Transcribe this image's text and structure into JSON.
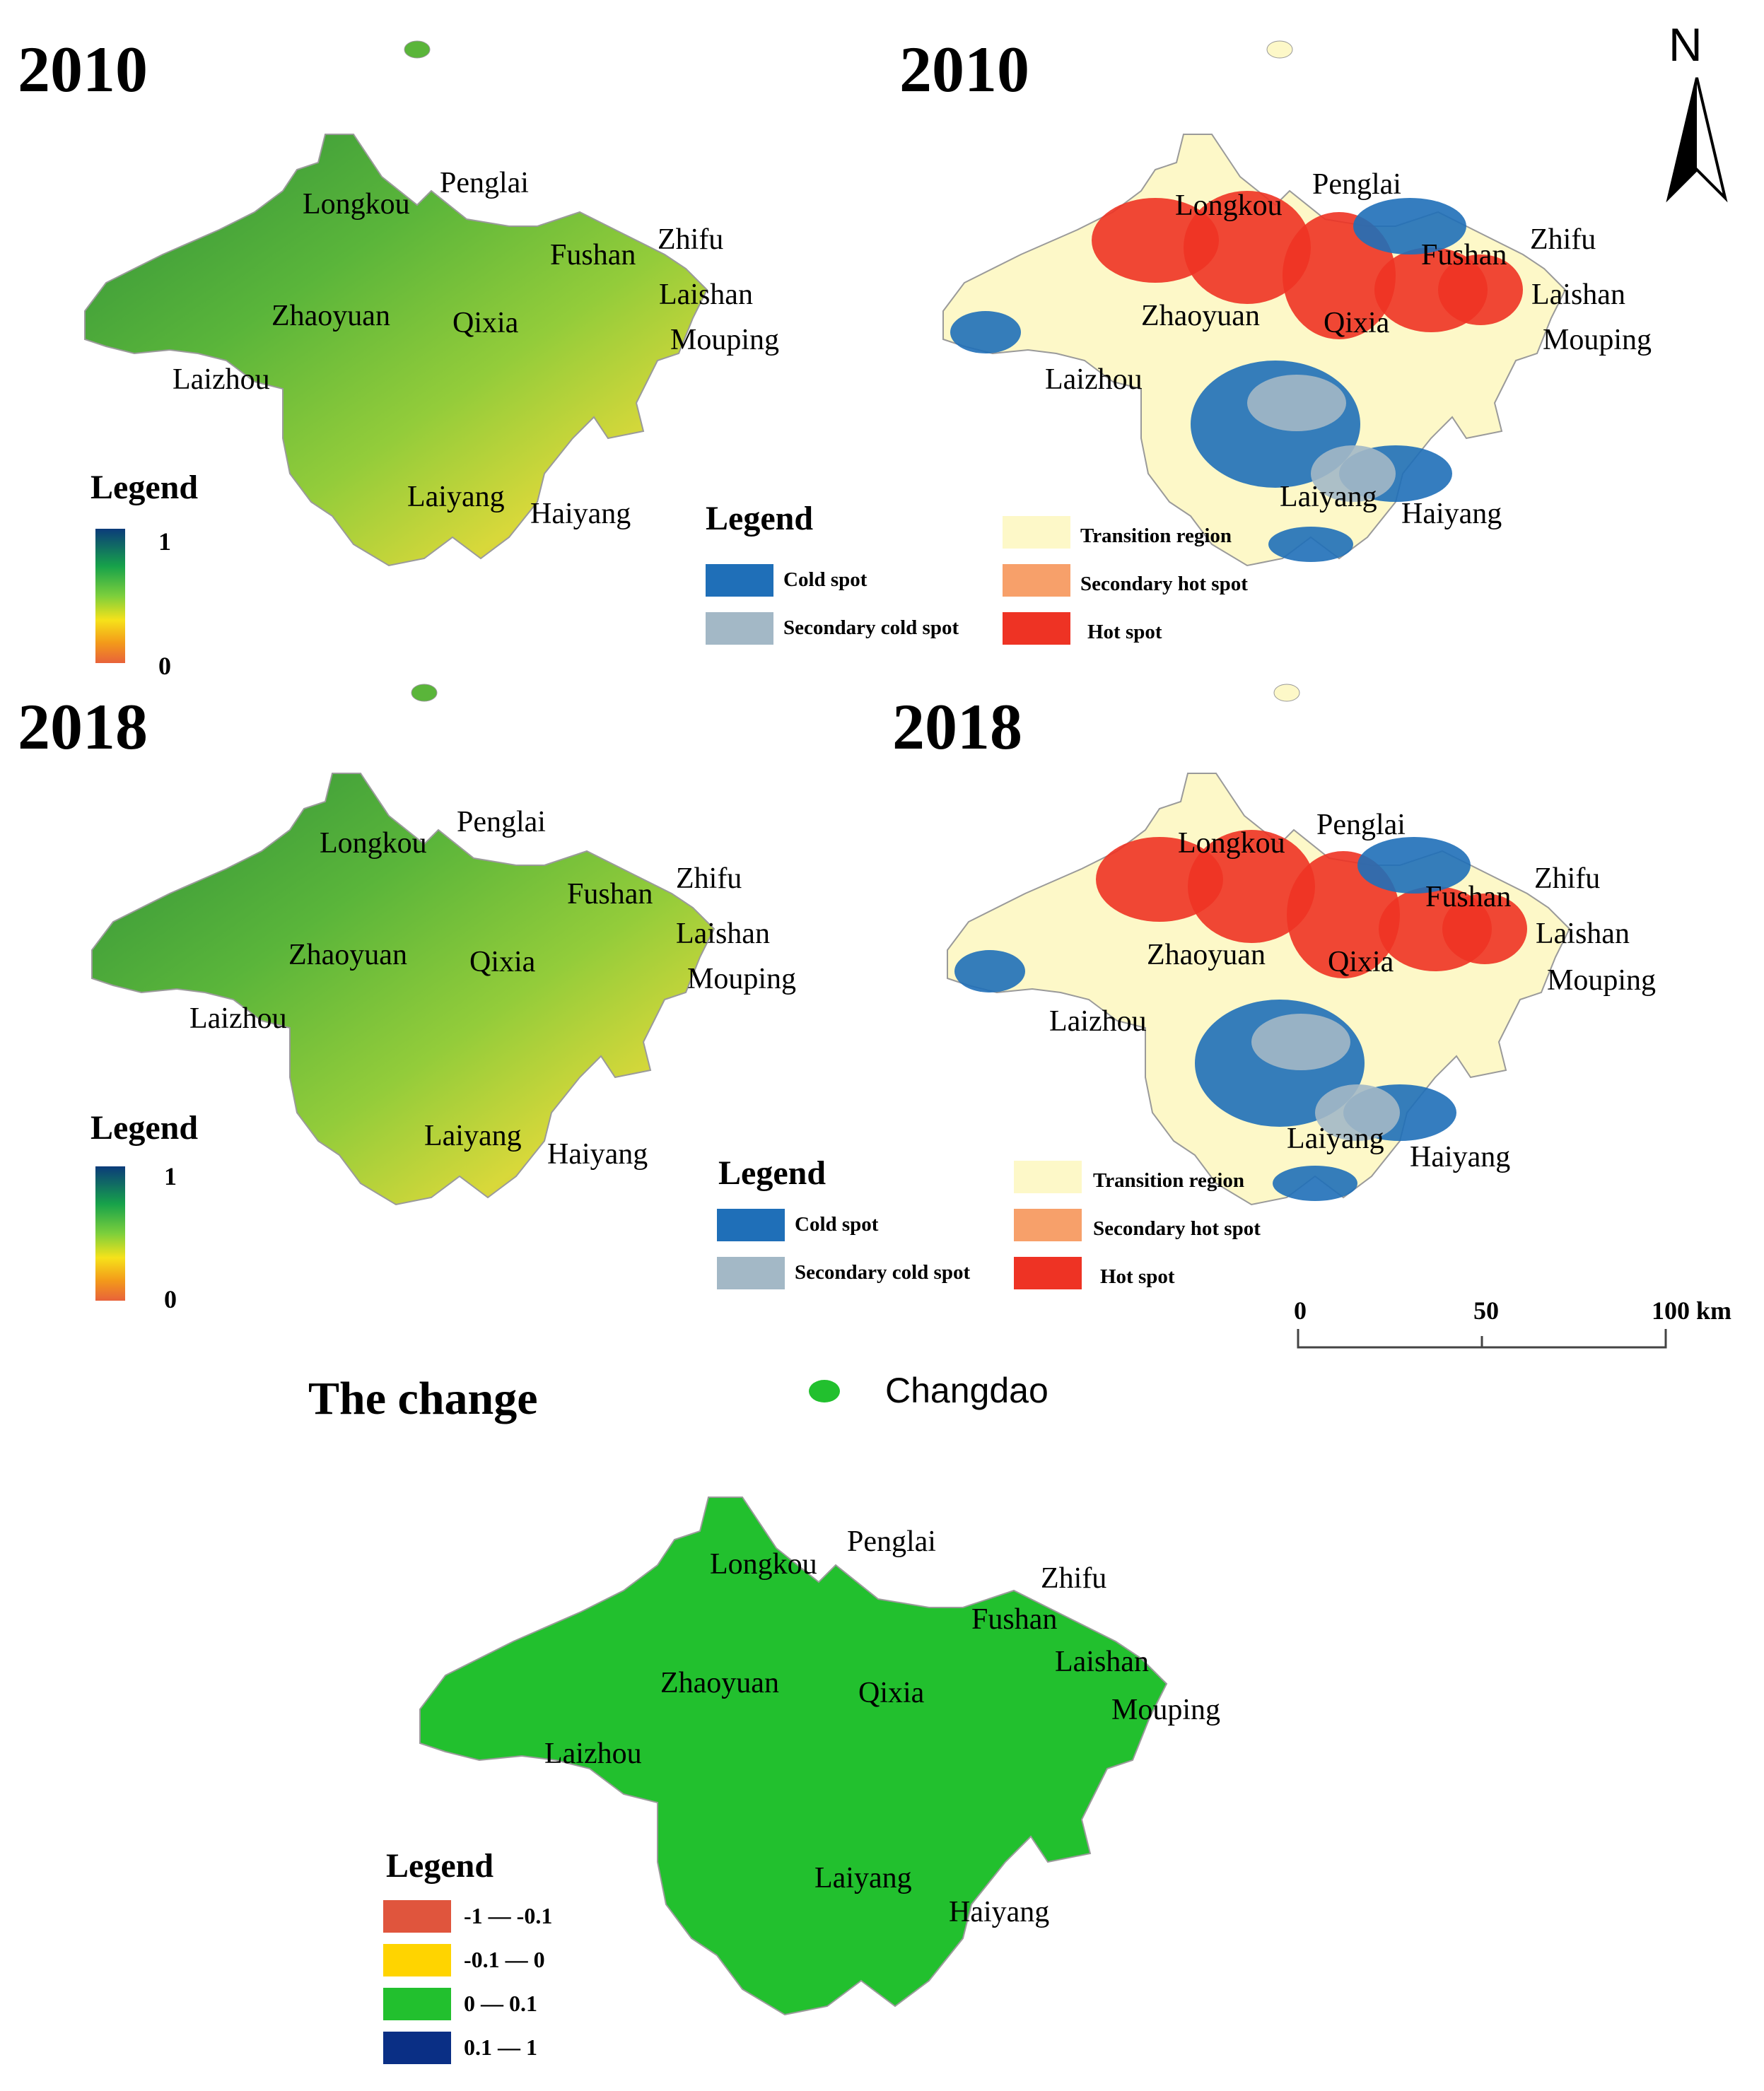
{
  "panels": {
    "ndvi_2010": {
      "year": "2010"
    },
    "hot_2010": {
      "year": "2010"
    },
    "ndvi_2018": {
      "year": "2018"
    },
    "hot_2018": {
      "year": "2018"
    },
    "change": {
      "title": "The change"
    }
  },
  "places": {
    "longkou": "Longkou",
    "penglai": "Penglai",
    "fushan": "Fushan",
    "zhifu": "Zhifu",
    "laishan": "Laishan",
    "mouping": "Mouping",
    "zhaoyuan": "Zhaoyuan",
    "qixia": "Qixia",
    "laizhou": "Laizhou",
    "laiyang": "Laiyang",
    "haiyang": "Haiyang",
    "changdao": "Changdao"
  },
  "continuous_legend": {
    "title": "Legend",
    "max": "1",
    "min": "0"
  },
  "hotspot_legend": {
    "title": "Legend",
    "items": [
      {
        "label": "Cold spot",
        "color": "#1f6fb8"
      },
      {
        "label": "Secondary cold spot",
        "color": "#a3b8c6"
      },
      {
        "label": "Transition region",
        "color": "#fdf8c8"
      },
      {
        "label": "Secondary hot spot",
        "color": "#f7a06a"
      },
      {
        "label": "Hot spot",
        "color": "#ee3324"
      }
    ]
  },
  "change_legend": {
    "title": "Legend",
    "items": [
      {
        "label": "-1 — -0.1",
        "color": "#e0553d"
      },
      {
        "label": "-0.1 — 0",
        "color": "#ffd400"
      },
      {
        "label": "0 — 0.1",
        "color": "#22c02e"
      },
      {
        "label": "0.1 — 1",
        "color": "#0a2f85"
      }
    ]
  },
  "north_arrow": {
    "label": "N"
  },
  "scale_bar": {
    "ticks": [
      "0",
      "50",
      "100 km"
    ]
  }
}
